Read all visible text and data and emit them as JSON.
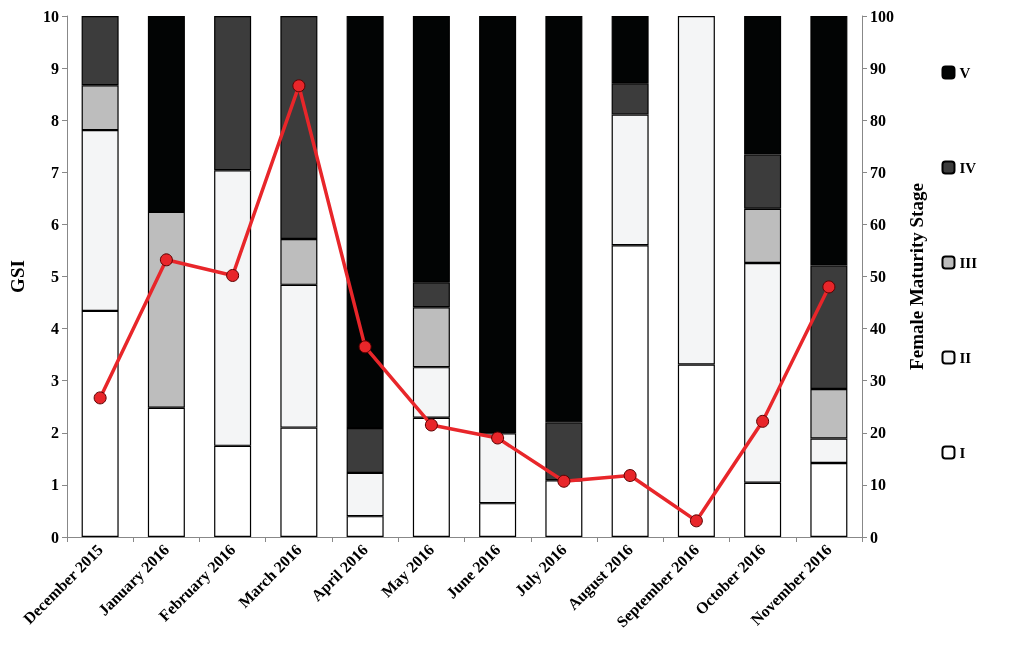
{
  "chart_data": {
    "type": "bar",
    "stacked": true,
    "ylabel": "GSI",
    "y2label": "Female Maturity Stage",
    "categories": [
      "December 2015",
      "January 2016",
      "February 2016",
      "March 2016",
      "April 2016",
      "May 2016",
      "June 2016",
      "July 2016",
      "August 2016",
      "September 2016",
      "October 2016",
      "November 2016"
    ],
    "series": [
      {
        "name": "I",
        "color": "#ffffff",
        "axis": "y2",
        "values": [
          43.4,
          24.8,
          17.5,
          21.0,
          4.0,
          22.9,
          6.5,
          10.9,
          56.0,
          33.1,
          10.4,
          14.2
        ]
      },
      {
        "name": "II",
        "color": "#f4f5f6",
        "axis": "y2",
        "values": [
          34.7,
          0,
          52.9,
          27.4,
          8.3,
          9.7,
          13.4,
          0,
          25.1,
          66.9,
          42.2,
          4.7
        ]
      },
      {
        "name": "III",
        "color": "#bdbdbd",
        "axis": "y2",
        "values": [
          8.6,
          37.6,
          0,
          8.8,
          0,
          11.5,
          0,
          0,
          0,
          0,
          10.4,
          9.5
        ]
      },
      {
        "name": "IV",
        "color": "#3c3c3c",
        "axis": "y2",
        "values": [
          13.3,
          0,
          29.6,
          42.8,
          8.6,
          4.8,
          0,
          11.1,
          6.0,
          0,
          10.4,
          23.7
        ]
      },
      {
        "name": "V",
        "color": "#020404",
        "axis": "y2",
        "values": [
          0,
          37.6,
          0,
          0,
          79.1,
          51.1,
          80.1,
          78.0,
          12.9,
          0,
          26.6,
          47.9
        ]
      },
      {
        "type": "line",
        "color": "#e8262a",
        "axis": "y",
        "marker": "circle",
        "line_style": "solid",
        "values": [
          2.67,
          5.32,
          5.02,
          8.66,
          3.65,
          2.15,
          1.9,
          1.07,
          1.18,
          0.31,
          2.22,
          4.8
        ]
      }
    ],
    "ylim": [
      0,
      10
    ],
    "yticks": [
      0,
      1,
      2,
      3,
      4,
      5,
      6,
      7,
      8,
      9,
      10
    ],
    "y2lim": [
      0,
      100
    ],
    "y2ticks": [
      0,
      10,
      20,
      30,
      40,
      50,
      60,
      70,
      80,
      90,
      100
    ],
    "grid": false,
    "legend": "right"
  }
}
